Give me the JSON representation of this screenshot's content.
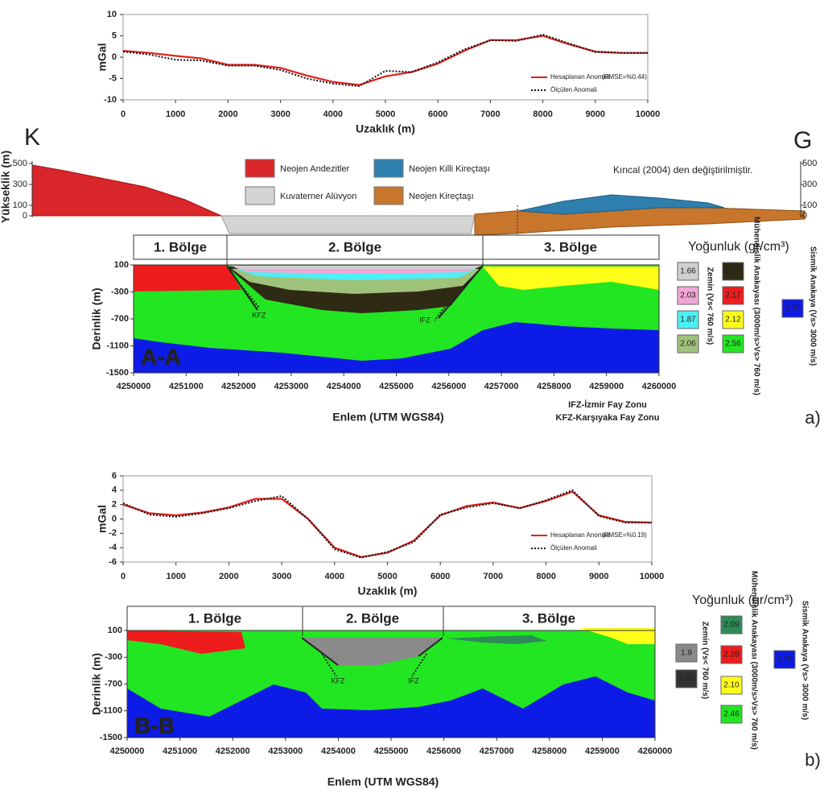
{
  "chart_data": [
    {
      "type": "line",
      "ylabel": "mGal",
      "xlabel": "Uzaklık (m)",
      "x": [
        0,
        500,
        1000,
        1500,
        2000,
        2500,
        3000,
        3500,
        4000,
        4500,
        5000,
        5500,
        6000,
        6500,
        7000,
        7500,
        8000,
        8500,
        9000,
        9500,
        10000
      ],
      "series": [
        {
          "name": "Hesaplanan Anomali",
          "color": "#e0201c",
          "style": "solid",
          "values": [
            1.5,
            1.0,
            0.3,
            -0.3,
            -1.8,
            -1.8,
            -2.5,
            -4.3,
            -5.8,
            -6.5,
            -4.5,
            -3.5,
            -1.5,
            1.5,
            4.0,
            4.0,
            5.0,
            3.0,
            1.3,
            1.0,
            1.0
          ]
        },
        {
          "name": "Ölçülen Anomali",
          "color": "#111111",
          "style": "dotted",
          "values": [
            1.3,
            0.6,
            -0.6,
            -0.8,
            -2.0,
            -2.0,
            -3.0,
            -5.0,
            -6.2,
            -6.8,
            -3.2,
            -3.5,
            -1.2,
            1.8,
            4.0,
            3.8,
            5.3,
            3.2,
            1.2,
            1.0,
            1.0
          ]
        }
      ],
      "annotation": "(RMSE=%0.44)",
      "xlim": [
        0,
        10000
      ],
      "xticks": [
        0,
        1000,
        2000,
        3000,
        4000,
        5000,
        6000,
        7000,
        8000,
        9000,
        10000
      ],
      "ylim": [
        -10,
        10
      ],
      "yticks": [
        -10,
        -5,
        0,
        5,
        10
      ]
    },
    {
      "type": "line",
      "ylabel": "mGal",
      "xlabel": "Uzaklık (m)",
      "x": [
        0,
        500,
        1000,
        1500,
        2000,
        2500,
        3000,
        3500,
        4000,
        4500,
        5000,
        5500,
        6000,
        6500,
        7000,
        7500,
        8000,
        8500,
        9000,
        9500,
        10000
      ],
      "series": [
        {
          "name": "Hesaplanan Anomali",
          "color": "#e0201c",
          "style": "solid",
          "values": [
            2.0,
            0.8,
            0.5,
            0.9,
            1.6,
            2.8,
            2.8,
            0.0,
            -4.0,
            -5.3,
            -4.7,
            -3.0,
            0.5,
            1.8,
            2.3,
            1.5,
            2.5,
            3.8,
            0.5,
            -0.4,
            -0.5
          ]
        },
        {
          "name": "Ölçülen Anomali",
          "color": "#111111",
          "style": "dotted",
          "values": [
            2.2,
            0.6,
            0.3,
            0.8,
            1.5,
            2.5,
            3.2,
            0.0,
            -4.2,
            -5.4,
            -4.6,
            -3.2,
            0.6,
            1.6,
            2.2,
            1.5,
            2.6,
            4.0,
            0.4,
            -0.5,
            -0.5
          ]
        }
      ],
      "annotation": "(RMSE=%0.19)",
      "xlim": [
        0,
        10000
      ],
      "xticks": [
        0,
        1000,
        2000,
        3000,
        4000,
        5000,
        6000,
        7000,
        8000,
        9000,
        10000
      ],
      "ylim": [
        -6,
        6
      ],
      "yticks": [
        -6,
        -4,
        -2,
        0,
        2,
        4,
        6
      ]
    }
  ],
  "elevation_profile": {
    "left_label": "K",
    "right_label": "G",
    "ylabel": "Yükseklik (m)",
    "ylim": [
      0,
      500
    ],
    "yticks": [
      0,
      100,
      300,
      500
    ],
    "legend": [
      {
        "name": "Neojen Andezitler",
        "color": "#d9262b"
      },
      {
        "name": "Neojen Killi Kireçtaşı",
        "color": "#2f7fae"
      },
      {
        "name": "Kuvaterner Alüvyon",
        "color": "#d4d4d4"
      },
      {
        "name": "Neojen Kireçtaşı",
        "color": "#c8762c"
      }
    ],
    "source": "Kıncal (2004) den değiştirilmiştir."
  },
  "sections": [
    {
      "name": "A-A",
      "zones": [
        "1. Bölge",
        "2. Bölge",
        "3. Bölge"
      ],
      "faults": [
        "KFZ",
        "IFZ"
      ],
      "xlabel": "Enlem (UTM WGS84)",
      "ylabel": "Derinlik (m)",
      "xlim": [
        4250000,
        4260000
      ],
      "xticks": [
        4250000,
        4251000,
        4252000,
        4253000,
        4254000,
        4255000,
        4256000,
        4257000,
        4258000,
        4259000,
        4260000
      ],
      "ylim": [
        -1500,
        100
      ],
      "yticks": [
        -1500,
        -1100,
        -700,
        -300,
        100
      ],
      "notes": [
        "IFZ-İzmir Fay Zonu",
        "KFZ-Karşıyaka Fay Zonu"
      ],
      "panel_label": "a)",
      "density_title": "Yoğunluk (gr/cm³)",
      "density_groups": [
        {
          "label": "Zemin (Vs< 760 m/s)",
          "items": [
            {
              "value": "1.66",
              "color": "#cfcfcf"
            },
            {
              "value": "2.03",
              "color": "#f2a6d6"
            },
            {
              "value": "1.87",
              "color": "#4df0f5"
            },
            {
              "value": "2.06",
              "color": "#9fc27a"
            }
          ]
        },
        {
          "label": "Mühendislik Anakayası (3000m/s>Vs> 760 m/s)",
          "items": [
            {
              "value": "2.36",
              "color": "#2e2a14"
            },
            {
              "value": "2.17",
              "color": "#ee1c1c"
            },
            {
              "value": "2.12",
              "color": "#ffff1a"
            },
            {
              "value": "2.56",
              "color": "#22e622"
            }
          ]
        },
        {
          "label": "Sismik Anakaya (Vs> 3000 m/s)",
          "items": [
            {
              "value": "2.78",
              "color": "#0d1be6"
            }
          ]
        }
      ]
    },
    {
      "name": "B-B",
      "zones": [
        "1. Bölge",
        "2. Bölge",
        "3. Bölge"
      ],
      "faults": [
        "KFZ",
        "IFZ"
      ],
      "xlabel": "Enlem (UTM WGS84)",
      "ylabel": "Derinlik (m)",
      "xlim": [
        4250000,
        4260000
      ],
      "xticks": [
        4250000,
        4251000,
        4252000,
        4253000,
        4254000,
        4255000,
        4256000,
        4257000,
        4258000,
        4259000,
        4260000
      ],
      "ylim": [
        -1500,
        100
      ],
      "yticks": [
        -1500,
        -1100,
        -700,
        -300,
        100
      ],
      "notes": [],
      "panel_label": "b)",
      "density_title": "Yoğunluk (gr/cm³)",
      "density_groups": [
        {
          "label": "Zemin (Vs< 760 m/s)",
          "items": [
            {
              "value": "1.9",
              "color": "#8a8a8a"
            },
            {
              "value": "1.99",
              "color": "#333333"
            }
          ]
        },
        {
          "label": "Mühendislik Anakayası (3000m/s>Vs> 760 m/s)",
          "items": [
            {
              "value": "2.09",
              "color": "#2e8b57"
            },
            {
              "value": "2.28",
              "color": "#ee1c1c"
            },
            {
              "value": "2.10",
              "color": "#ffff1a"
            },
            {
              "value": "2.46",
              "color": "#22e622"
            }
          ]
        },
        {
          "label": "Sismik Anakaya (Vs> 3000 m/s)",
          "items": [
            {
              "value": "2.78",
              "color": "#0d1be6"
            }
          ]
        }
      ]
    }
  ]
}
